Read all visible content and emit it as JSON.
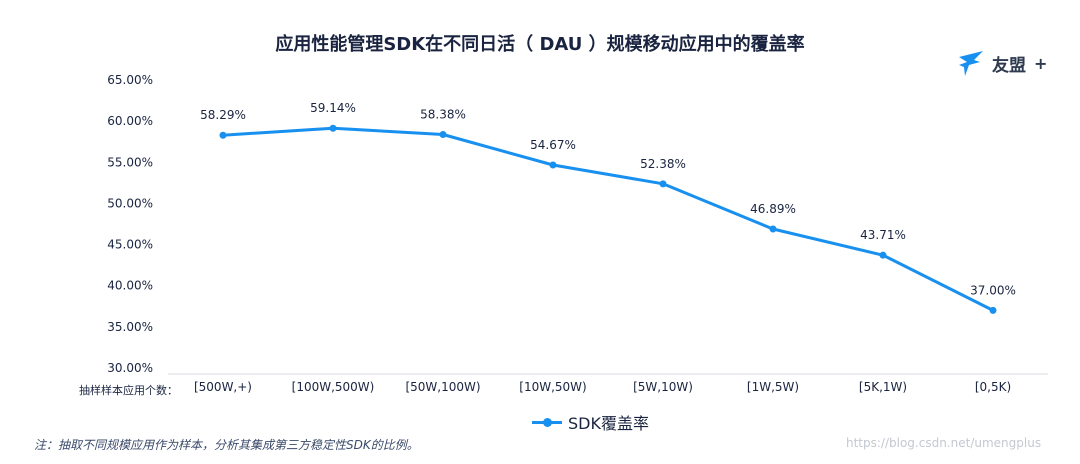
{
  "header": {
    "title": "应用性能管理SDK在不同日活（ DAU ）规模移动应用中的覆盖率"
  },
  "logo": {
    "text": "友盟",
    "plus": "+",
    "icon": "umeng-bird-logo"
  },
  "axis": {
    "row_label": "抽样样本应用个数："
  },
  "footer": {
    "note": "注：抽取不同规模应用作为样本，分析其集成第三方稳定性SDK的比例。",
    "watermark": "https://blog.csdn.net/umengplus"
  },
  "colors": {
    "line": "#1890f0",
    "grid": "#d7dbe2"
  },
  "chart_data": {
    "type": "line",
    "title": "应用性能管理SDK在不同日活（ DAU ）规模移动应用中的覆盖率",
    "categories": [
      "[500W,+)",
      "[100W,500W)",
      "[50W,100W)",
      "[10W,50W)",
      "[5W,10W)",
      "[1W,5W)",
      "[5K,1W)",
      "[0,5K)"
    ],
    "series": [
      {
        "name": "SDK覆盖率",
        "values": [
          58.29,
          59.14,
          58.38,
          54.67,
          52.38,
          46.89,
          43.71,
          37.0
        ],
        "labels": [
          "58.29%",
          "59.14%",
          "58.38%",
          "54.67%",
          "52.38%",
          "46.89%",
          "43.71%",
          "37.00%"
        ]
      }
    ],
    "ylim": [
      30,
      65
    ],
    "yticks": [
      30,
      35,
      40,
      45,
      50,
      55,
      60,
      65
    ],
    "ytick_labels": [
      "30.00%",
      "35.00%",
      "40.00%",
      "45.00%",
      "50.00%",
      "55.00%",
      "60.00%",
      "65.00%"
    ],
    "grid": false,
    "legend": "bottom-center"
  }
}
